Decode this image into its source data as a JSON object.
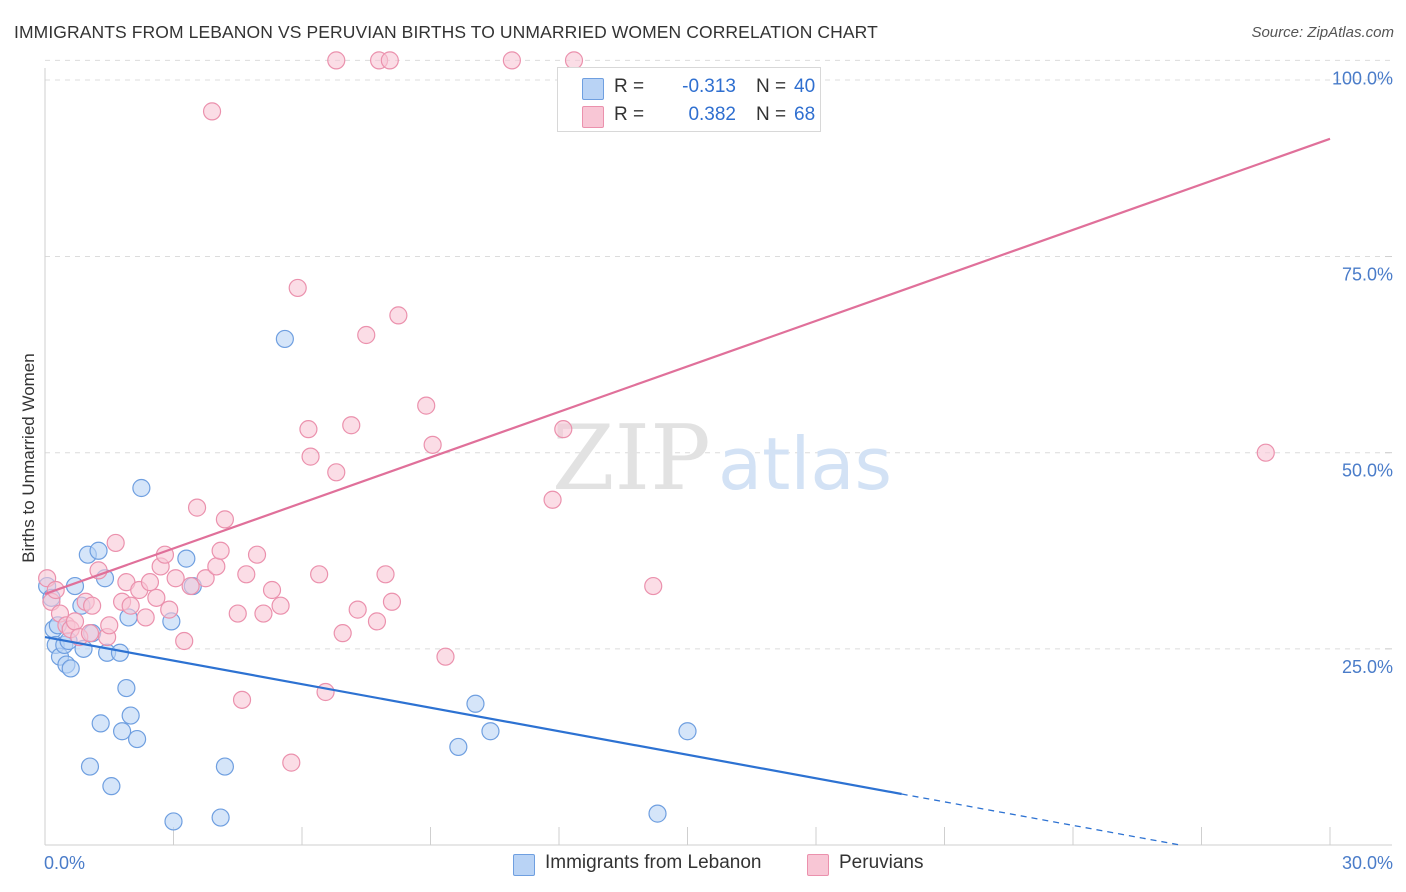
{
  "title": "IMMIGRANTS FROM LEBANON VS PERUVIAN BIRTHS TO UNMARRIED WOMEN CORRELATION CHART",
  "source": "Source: ZipAtlas.com",
  "watermark": {
    "zip": "ZIP",
    "atlas": "atlas"
  },
  "colors": {
    "blue_fill": "#b9d3f5",
    "blue_stroke": "#6f9fe0",
    "blue_line": "#2d72d2",
    "pink_fill": "#f8c6d5",
    "pink_stroke": "#eb91ad",
    "pink_line": "#e0709a",
    "grid": "#dcdcdc",
    "tick_text": "#4a7cc9"
  },
  "legend": {
    "rows": [
      {
        "r_label": "R =",
        "r_value": "-0.313",
        "n_label": "N =",
        "n_value": "40",
        "series": "blue"
      },
      {
        "r_label": "R =",
        "r_value": "0.382",
        "n_label": "N =",
        "n_value": "68",
        "series": "pink"
      }
    ]
  },
  "bottom_legend": [
    {
      "label": "Immigrants from Lebanon",
      "series": "blue"
    },
    {
      "label": "Peruvians",
      "series": "pink"
    }
  ],
  "chart_data": {
    "type": "scatter",
    "title": "IMMIGRANTS FROM LEBANON VS PERUVIAN BIRTHS TO UNMARRIED WOMEN CORRELATION CHART",
    "xlabel": "",
    "ylabel": "Births to Unmarried Women",
    "xlim": [
      0,
      30
    ],
    "ylim": [
      0,
      100
    ],
    "x_tick_labels": [
      {
        "value": 0,
        "label": "0.0%"
      },
      {
        "value": 30,
        "label": "30.0%"
      }
    ],
    "y_tick_labels": [
      {
        "value": 25,
        "label": "25.0%"
      },
      {
        "value": 50,
        "label": "50.0%"
      },
      {
        "value": 75,
        "label": "75.0%"
      },
      {
        "value": 100,
        "label": "100.0%"
      }
    ],
    "grid": true,
    "series": [
      {
        "name": "Immigrants from Lebanon",
        "color": "blue",
        "points": [
          [
            0.05,
            33.0
          ],
          [
            0.2,
            27.5
          ],
          [
            0.25,
            25.5
          ],
          [
            0.35,
            24.0
          ],
          [
            0.45,
            25.5
          ],
          [
            0.5,
            23.0
          ],
          [
            0.55,
            26.0
          ],
          [
            0.6,
            22.5
          ],
          [
            0.7,
            33.0
          ],
          [
            0.85,
            30.5
          ],
          [
            0.9,
            25.0
          ],
          [
            1.0,
            37.0
          ],
          [
            1.05,
            10.0
          ],
          [
            1.1,
            27.0
          ],
          [
            1.25,
            37.5
          ],
          [
            1.3,
            15.5
          ],
          [
            1.4,
            34.0
          ],
          [
            1.45,
            24.5
          ],
          [
            1.55,
            7.5
          ],
          [
            1.75,
            24.5
          ],
          [
            1.8,
            14.5
          ],
          [
            1.9,
            20.0
          ],
          [
            1.95,
            29.0
          ],
          [
            2.0,
            16.5
          ],
          [
            2.15,
            13.5
          ],
          [
            2.25,
            45.5
          ],
          [
            2.95,
            28.5
          ],
          [
            3.0,
            3.0
          ],
          [
            3.3,
            36.5
          ],
          [
            3.45,
            33.0
          ],
          [
            4.1,
            3.5
          ],
          [
            4.2,
            10.0
          ],
          [
            5.6,
            64.5
          ],
          [
            9.65,
            12.5
          ],
          [
            10.05,
            18.0
          ],
          [
            10.4,
            14.5
          ],
          [
            14.3,
            4.0
          ],
          [
            15.0,
            14.5
          ],
          [
            0.15,
            31.5
          ],
          [
            0.3,
            28.0
          ]
        ],
        "trend": {
          "x": [
            0,
            20
          ],
          "y": [
            26.5,
            6.5
          ],
          "dashed_to": [
            26.5,
            0
          ]
        }
      },
      {
        "name": "Peruvians",
        "color": "pink",
        "points": [
          [
            0.05,
            34.0
          ],
          [
            0.15,
            31.0
          ],
          [
            0.35,
            29.5
          ],
          [
            0.5,
            28.0
          ],
          [
            0.6,
            27.5
          ],
          [
            0.7,
            28.5
          ],
          [
            0.8,
            26.5
          ],
          [
            0.95,
            31.0
          ],
          [
            1.05,
            27.0
          ],
          [
            1.1,
            30.5
          ],
          [
            1.25,
            35.0
          ],
          [
            1.45,
            26.5
          ],
          [
            1.5,
            28.0
          ],
          [
            1.65,
            38.5
          ],
          [
            1.8,
            31.0
          ],
          [
            1.9,
            33.5
          ],
          [
            2.0,
            30.5
          ],
          [
            2.2,
            32.5
          ],
          [
            2.35,
            29.0
          ],
          [
            2.45,
            33.5
          ],
          [
            2.6,
            31.5
          ],
          [
            2.7,
            35.5
          ],
          [
            2.8,
            37.0
          ],
          [
            2.9,
            30.0
          ],
          [
            3.05,
            34.0
          ],
          [
            3.25,
            26.0
          ],
          [
            3.4,
            33.0
          ],
          [
            3.55,
            43.0
          ],
          [
            3.75,
            34.0
          ],
          [
            3.9,
            93.5
          ],
          [
            4.0,
            35.5
          ],
          [
            4.1,
            37.5
          ],
          [
            4.2,
            41.5
          ],
          [
            4.5,
            29.5
          ],
          [
            4.6,
            18.5
          ],
          [
            4.7,
            34.5
          ],
          [
            4.95,
            37.0
          ],
          [
            5.1,
            29.5
          ],
          [
            5.3,
            32.5
          ],
          [
            5.5,
            30.5
          ],
          [
            5.75,
            10.5
          ],
          [
            5.9,
            71.0
          ],
          [
            6.15,
            53.0
          ],
          [
            6.2,
            49.5
          ],
          [
            6.4,
            34.5
          ],
          [
            6.55,
            19.5
          ],
          [
            6.8,
            47.5
          ],
          [
            6.95,
            27.0
          ],
          [
            7.15,
            53.5
          ],
          [
            7.5,
            65.0
          ],
          [
            7.75,
            28.5
          ],
          [
            7.95,
            34.5
          ],
          [
            8.1,
            31.0
          ],
          [
            8.25,
            67.5
          ],
          [
            8.9,
            56.0
          ],
          [
            9.05,
            51.0
          ],
          [
            9.35,
            24.0
          ],
          [
            11.85,
            44.0
          ],
          [
            12.1,
            53.0
          ],
          [
            14.2,
            33.0
          ],
          [
            28.5,
            50.0
          ],
          [
            7.3,
            30.0
          ],
          [
            0.25,
            32.5
          ],
          [
            6.8,
            100.0
          ],
          [
            10.9,
            100.0
          ],
          [
            7.8,
            100.0
          ],
          [
            8.05,
            100.0
          ],
          [
            12.35,
            100.0
          ]
        ],
        "trend": {
          "x": [
            0,
            30
          ],
          "y": [
            32.0,
            90.0
          ]
        }
      }
    ]
  }
}
